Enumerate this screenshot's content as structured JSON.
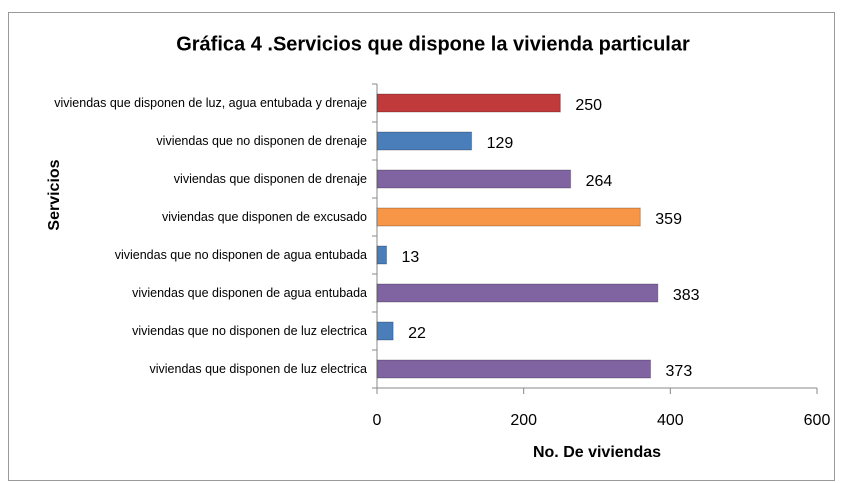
{
  "chart_data": {
    "type": "hbar",
    "title": "Gráfica 4 .Servicios que dispone la vivienda particular",
    "y_label": "Servicios",
    "x_label": "No. De viviendas",
    "categories": [
      "viviendas que disponen de luz, agua entubada y drenaje",
      "viviendas que no disponen de drenaje",
      "viviendas que disponen de drenaje",
      "viviendas que disponen de excusado",
      "viviendas que no disponen de agua entubada",
      "viviendas que disponen de agua entubada",
      "viviendas que no disponen de luz electrica",
      "viviendas que disponen de luz electrica"
    ],
    "values": [
      250,
      129,
      264,
      359,
      13,
      383,
      22,
      373
    ],
    "colors": [
      "#c0393b",
      "#4a7ebb",
      "#8064a2",
      "#f79646",
      "#4a7ebb",
      "#8064a2",
      "#4a7ebb",
      "#8064a2"
    ],
    "xlim": [
      0,
      600
    ],
    "xticks": [
      0,
      200,
      400,
      600
    ]
  }
}
